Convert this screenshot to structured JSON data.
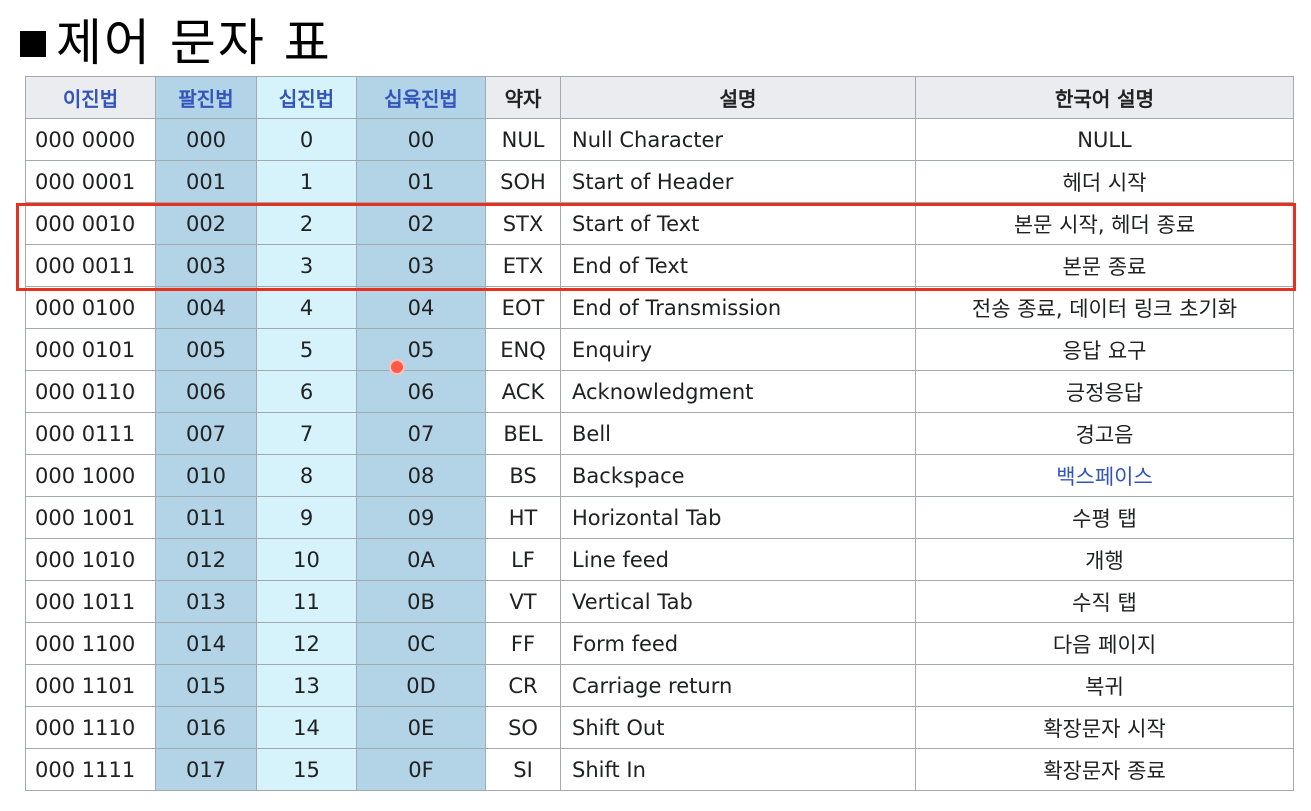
{
  "title": "제어 문자 표",
  "headers": {
    "binary": "이진법",
    "octal": "팔진법",
    "decimal": "십진법",
    "hex": "십육진법",
    "abbr": "약자",
    "description": "설명",
    "korean": "한국어 설명"
  },
  "rows": [
    {
      "bin": "000 0000",
      "oct": "000",
      "dec": "0",
      "hex": "00",
      "abbr": "NUL",
      "desc": "Null Character",
      "kor": "NULL"
    },
    {
      "bin": "000 0001",
      "oct": "001",
      "dec": "1",
      "hex": "01",
      "abbr": "SOH",
      "desc": "Start of Header",
      "kor": "헤더 시작"
    },
    {
      "bin": "000 0010",
      "oct": "002",
      "dec": "2",
      "hex": "02",
      "abbr": "STX",
      "desc": "Start of Text",
      "kor": "본문 시작, 헤더 종료"
    },
    {
      "bin": "000 0011",
      "oct": "003",
      "dec": "3",
      "hex": "03",
      "abbr": "ETX",
      "desc": "End of Text",
      "kor": "본문 종료"
    },
    {
      "bin": "000 0100",
      "oct": "004",
      "dec": "4",
      "hex": "04",
      "abbr": "EOT",
      "desc": "End of Transmission",
      "kor": "전송 종료, 데이터 링크 초기화"
    },
    {
      "bin": "000 0101",
      "oct": "005",
      "dec": "5",
      "hex": "05",
      "abbr": "ENQ",
      "desc": "Enquiry",
      "kor": "응답 요구"
    },
    {
      "bin": "000 0110",
      "oct": "006",
      "dec": "6",
      "hex": "06",
      "abbr": "ACK",
      "desc": "Acknowledgment",
      "kor": "긍정응답"
    },
    {
      "bin": "000 0111",
      "oct": "007",
      "dec": "7",
      "hex": "07",
      "abbr": "BEL",
      "desc": "Bell",
      "kor": "경고음"
    },
    {
      "bin": "000 1000",
      "oct": "010",
      "dec": "8",
      "hex": "08",
      "abbr": "BS",
      "desc": "Backspace",
      "kor": "백스페이스"
    },
    {
      "bin": "000 1001",
      "oct": "011",
      "dec": "9",
      "hex": "09",
      "abbr": "HT",
      "desc": "Horizontal Tab",
      "kor": "수평 탭"
    },
    {
      "bin": "000 1010",
      "oct": "012",
      "dec": "10",
      "hex": "0A",
      "abbr": "LF",
      "desc": "Line feed",
      "kor": "개행"
    },
    {
      "bin": "000 1011",
      "oct": "013",
      "dec": "11",
      "hex": "0B",
      "abbr": "VT",
      "desc": "Vertical Tab",
      "kor": "수직 탭"
    },
    {
      "bin": "000 1100",
      "oct": "014",
      "dec": "12",
      "hex": "0C",
      "abbr": "FF",
      "desc": "Form feed",
      "kor": "다음 페이지"
    },
    {
      "bin": "000 1101",
      "oct": "015",
      "dec": "13",
      "hex": "0D",
      "abbr": "CR",
      "desc": "Carriage return",
      "kor": "복귀"
    },
    {
      "bin": "000 1110",
      "oct": "016",
      "dec": "14",
      "hex": "0E",
      "abbr": "SO",
      "desc": "Shift Out",
      "kor": "확장문자 시작"
    },
    {
      "bin": "000 1111",
      "oct": "017",
      "dec": "15",
      "hex": "0F",
      "abbr": "SI",
      "desc": "Shift In",
      "kor": "확장문자 종료"
    }
  ],
  "colors": {
    "link": "#3355bb",
    "octal_hex_bg": "#b3d3e6",
    "decimal_bg": "#d6f2fb",
    "highlight_border": "#e5311e"
  }
}
